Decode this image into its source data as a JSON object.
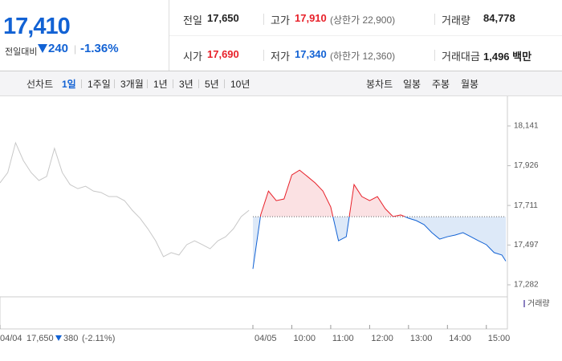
{
  "header": {
    "price": "17,410",
    "change_label": "전일대비",
    "change": "240",
    "change_rate": "-1.36%",
    "stats": [
      {
        "label": "전일",
        "value": "17,650",
        "color": "#222222"
      },
      {
        "label": "고가",
        "value": "17,910",
        "extra": "(상한가 22,900)",
        "color": "#e8212a"
      },
      {
        "label": "거래량",
        "value": "84,778",
        "color": "#222222"
      },
      {
        "label": "시가",
        "value": "17,690",
        "color": "#e8212a"
      },
      {
        "label": "저가",
        "value": "17,340",
        "extra": "(하한가 12,360)",
        "color": "#1262d4"
      },
      {
        "label": "거래대금",
        "value": "1,496 백만",
        "color": "#222222"
      }
    ]
  },
  "tabs": {
    "line_label": "선차트",
    "periods": [
      "1일",
      "1주일",
      "3개월",
      "1년",
      "3년",
      "5년",
      "10년"
    ],
    "candle_label": "봉차트",
    "candles": [
      "일봉",
      "주봉",
      "월봉"
    ]
  },
  "chart_data": {
    "type": "line",
    "xlim": [
      0,
      13
    ],
    "ylim": [
      17282,
      18141
    ],
    "xticks": [
      {
        "value": 0,
        "label": "04/04"
      },
      {
        "value": 6.5,
        "label": "04/05"
      },
      {
        "value": 7.5,
        "label": "10:00"
      },
      {
        "value": 8.5,
        "label": "11:00"
      },
      {
        "value": 9.5,
        "label": "12:00"
      },
      {
        "value": 10.5,
        "label": "13:00"
      },
      {
        "value": 11.5,
        "label": "14:00"
      },
      {
        "value": 12.5,
        "label": "15:00"
      }
    ],
    "yticks": [
      {
        "value": 18141,
        "label": "18,141"
      },
      {
        "value": 17926,
        "label": "17,926"
      },
      {
        "value": 17711,
        "label": "17,711"
      },
      {
        "value": 17497,
        "label": "17,497"
      },
      {
        "value": 17282,
        "label": "17,282"
      }
    ],
    "reference": 17650,
    "series": [
      {
        "color": "#c8c8c8",
        "x": [
          0,
          0.2,
          0.4,
          0.6,
          0.8,
          1,
          1.2,
          1.4,
          1.6,
          1.8,
          2,
          2.2,
          2.4,
          2.6,
          2.8,
          3,
          3.2,
          3.4,
          3.6,
          3.8,
          4,
          4.2,
          4.4,
          4.6,
          4.8,
          5,
          5.2,
          5.4,
          5.6,
          5.8,
          6,
          6.2,
          6.4
        ],
        "values": [
          17833,
          17889,
          18050,
          17954,
          17889,
          17846,
          17868,
          18020,
          17889,
          17824,
          17802,
          17815,
          17789,
          17781,
          17759,
          17759,
          17737,
          17685,
          17642,
          17585,
          17520,
          17434,
          17456,
          17443,
          17499,
          17520,
          17499,
          17477,
          17520,
          17542,
          17585,
          17651,
          17685
        ]
      },
      {
        "color": "#1262d4",
        "up_color": "#e8212a",
        "up_fill": "#fbe1e3",
        "down_fill": "#dde9f8",
        "x": [
          6.5,
          6.7,
          6.9,
          7.1,
          7.3,
          7.5,
          7.7,
          7.9,
          8.1,
          8.3,
          8.5,
          8.7,
          8.9,
          9.1,
          9.3,
          9.5,
          9.7,
          9.9,
          10.1,
          10.3,
          10.5,
          10.7,
          10.9,
          11.1,
          11.3,
          11.5,
          11.7,
          11.9,
          12.1,
          12.3,
          12.5,
          12.7,
          12.9,
          13
        ],
        "values": [
          17368,
          17660,
          17789,
          17737,
          17746,
          17876,
          17902,
          17868,
          17833,
          17789,
          17703,
          17520,
          17542,
          17824,
          17759,
          17737,
          17759,
          17694,
          17651,
          17660,
          17642,
          17629,
          17607,
          17564,
          17529,
          17542,
          17551,
          17564,
          17542,
          17520,
          17499,
          17456,
          17443,
          17410
        ]
      }
    ],
    "volume_label": "거래량",
    "prev_summary": {
      "close": "17,650",
      "change": "380",
      "rate": "(-2.11%)"
    }
  }
}
